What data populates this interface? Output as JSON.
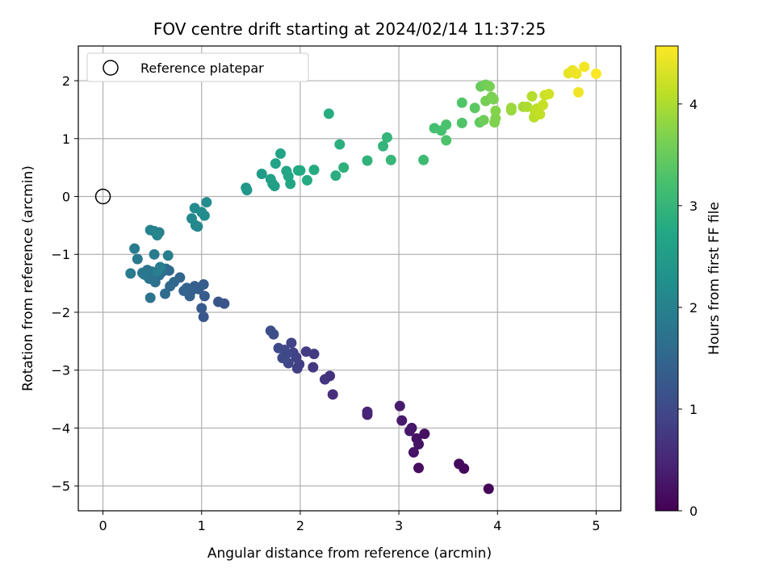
{
  "chart_data": {
    "type": "scatter",
    "title": "FOV centre drift starting at 2024/02/14 11:37:25",
    "xlabel": "Angular distance from reference (arcmin)",
    "ylabel": "Rotation from reference (arcmin)",
    "colorbar_label": "Hours from first FF file",
    "xlim": [
      -0.25,
      5.25
    ],
    "ylim": [
      -5.43,
      2.6
    ],
    "clim": [
      0,
      4.57
    ],
    "x_ticks": [
      "0",
      "1",
      "2",
      "3",
      "4",
      "5"
    ],
    "y_ticks": [
      "2",
      "1",
      "0",
      "−1",
      "−2",
      "−3",
      "−4",
      "−5"
    ],
    "colorbar_ticks": [
      "0",
      "1",
      "2",
      "3",
      "4"
    ],
    "grid": true,
    "legend_placement": "top-left",
    "colormap": "viridis",
    "reference_point": {
      "label": "Reference platepar",
      "x": 0,
      "y": 0
    },
    "points": [
      [
        3.91,
        -5.05,
        0.05
      ],
      [
        3.66,
        -4.7,
        0.1
      ],
      [
        3.61,
        -4.62,
        0.12
      ],
      [
        3.2,
        -4.69,
        0.15
      ],
      [
        3.26,
        -4.1,
        0.2
      ],
      [
        3.18,
        -4.18,
        0.22
      ],
      [
        3.2,
        -4.28,
        0.24
      ],
      [
        3.15,
        -4.42,
        0.26
      ],
      [
        3.13,
        -4.0,
        0.28
      ],
      [
        3.11,
        -4.05,
        0.3
      ],
      [
        3.03,
        -3.87,
        0.32
      ],
      [
        3.01,
        -3.62,
        0.35
      ],
      [
        2.68,
        -3.77,
        0.45
      ],
      [
        2.68,
        -3.72,
        0.47
      ],
      [
        2.33,
        -3.42,
        0.6
      ],
      [
        2.3,
        -3.1,
        0.65
      ],
      [
        2.25,
        -3.16,
        0.7
      ],
      [
        2.13,
        -2.95,
        0.75
      ],
      [
        2.14,
        -2.72,
        0.78
      ],
      [
        2.06,
        -2.68,
        0.8
      ],
      [
        1.99,
        -2.9,
        0.83
      ],
      [
        1.97,
        -2.97,
        0.85
      ],
      [
        1.96,
        -2.78,
        0.88
      ],
      [
        1.93,
        -2.7,
        0.9
      ],
      [
        1.91,
        -2.53,
        0.93
      ],
      [
        1.88,
        -2.88,
        0.95
      ],
      [
        1.86,
        -2.72,
        0.98
      ],
      [
        1.84,
        -2.65,
        1.0
      ],
      [
        1.82,
        -2.79,
        1.02
      ],
      [
        1.78,
        -2.62,
        1.05
      ],
      [
        1.73,
        -2.38,
        1.08
      ],
      [
        1.7,
        -2.32,
        1.1
      ],
      [
        1.23,
        -1.85,
        1.2
      ],
      [
        1.17,
        -1.82,
        1.22
      ],
      [
        1.02,
        -2.08,
        1.25
      ],
      [
        1.0,
        -1.93,
        1.28
      ],
      [
        1.03,
        -1.72,
        1.3
      ],
      [
        1.02,
        -1.52,
        1.33
      ],
      [
        0.97,
        -1.6,
        1.35
      ],
      [
        0.93,
        -1.55,
        1.38
      ],
      [
        0.9,
        -1.62,
        1.4
      ],
      [
        0.88,
        -1.72,
        1.42
      ],
      [
        0.85,
        -1.58,
        1.45
      ],
      [
        0.82,
        -1.63,
        1.47
      ],
      [
        0.78,
        -1.4,
        1.5
      ],
      [
        0.72,
        -1.48,
        1.52
      ],
      [
        0.68,
        -1.55,
        1.55
      ],
      [
        0.67,
        -1.28,
        1.57
      ],
      [
        0.64,
        -1.25,
        1.6
      ],
      [
        0.63,
        -1.68,
        1.62
      ],
      [
        0.6,
        -1.3,
        1.65
      ],
      [
        0.57,
        -1.36,
        1.67
      ],
      [
        0.53,
        -1.48,
        1.7
      ],
      [
        0.5,
        -1.3,
        1.72
      ],
      [
        0.48,
        -1.75,
        1.74
      ],
      [
        0.47,
        -1.42,
        1.76
      ],
      [
        0.45,
        -1.27,
        1.78
      ],
      [
        0.42,
        -1.35,
        1.8
      ],
      [
        0.4,
        -1.32,
        1.82
      ],
      [
        0.35,
        -1.08,
        1.84
      ],
      [
        0.32,
        -0.9,
        1.86
      ],
      [
        0.28,
        -1.33,
        1.88
      ],
      [
        0.52,
        -1.0,
        1.9
      ],
      [
        0.55,
        -1.3,
        1.92
      ],
      [
        0.58,
        -1.22,
        1.94
      ],
      [
        0.66,
        -1.02,
        1.96
      ],
      [
        0.57,
        -0.62,
        1.98
      ],
      [
        0.52,
        -0.6,
        2.0
      ],
      [
        0.48,
        -0.58,
        2.02
      ],
      [
        0.55,
        -0.67,
        2.04
      ],
      [
        0.96,
        -0.52,
        2.1
      ],
      [
        0.94,
        -0.5,
        2.12
      ],
      [
        0.9,
        -0.38,
        2.14
      ],
      [
        0.93,
        -0.2,
        2.16
      ],
      [
        1.0,
        -0.27,
        2.18
      ],
      [
        1.03,
        -0.33,
        2.2
      ],
      [
        1.05,
        -0.1,
        2.22
      ],
      [
        1.45,
        0.15,
        2.4
      ],
      [
        1.46,
        0.11,
        2.42
      ],
      [
        1.61,
        0.39,
        2.5
      ],
      [
        1.72,
        0.22,
        2.55
      ],
      [
        1.74,
        0.18,
        2.57
      ],
      [
        1.7,
        0.3,
        2.6
      ],
      [
        1.75,
        0.57,
        2.62
      ],
      [
        1.8,
        0.74,
        2.65
      ],
      [
        1.86,
        0.44,
        2.68
      ],
      [
        1.88,
        0.35,
        2.7
      ],
      [
        1.9,
        0.22,
        2.72
      ],
      [
        1.98,
        0.45,
        2.74
      ],
      [
        2.0,
        0.45,
        2.76
      ],
      [
        2.07,
        0.28,
        2.78
      ],
      [
        2.14,
        0.46,
        2.8
      ],
      [
        2.29,
        1.43,
        2.82
      ],
      [
        2.36,
        0.36,
        2.85
      ],
      [
        2.4,
        0.9,
        2.88
      ],
      [
        2.44,
        0.5,
        2.9
      ],
      [
        2.68,
        0.62,
        2.95
      ],
      [
        2.84,
        0.87,
        2.98
      ],
      [
        2.88,
        1.02,
        3.0
      ],
      [
        2.92,
        0.63,
        3.02
      ],
      [
        3.25,
        0.63,
        3.1
      ],
      [
        3.36,
        1.18,
        3.2
      ],
      [
        3.43,
        1.14,
        3.22
      ],
      [
        3.48,
        1.24,
        3.25
      ],
      [
        3.48,
        0.97,
        3.27
      ],
      [
        3.64,
        1.27,
        3.3
      ],
      [
        3.64,
        1.62,
        3.32
      ],
      [
        3.77,
        1.53,
        3.4
      ],
      [
        3.82,
        1.28,
        3.45
      ],
      [
        3.83,
        1.9,
        3.5
      ],
      [
        3.86,
        1.32,
        3.55
      ],
      [
        3.88,
        1.93,
        3.57
      ],
      [
        3.88,
        1.65,
        3.6
      ],
      [
        3.92,
        1.9,
        3.62
      ],
      [
        3.94,
        1.72,
        3.64
      ],
      [
        3.96,
        1.68,
        3.66
      ],
      [
        3.97,
        1.28,
        3.68
      ],
      [
        3.98,
        1.35,
        3.7
      ],
      [
        3.98,
        1.48,
        3.72
      ],
      [
        4.14,
        1.49,
        3.85
      ],
      [
        4.14,
        1.53,
        3.88
      ],
      [
        4.26,
        1.55,
        3.95
      ],
      [
        4.3,
        1.55,
        4.0
      ],
      [
        4.35,
        1.73,
        4.05
      ],
      [
        4.37,
        1.37,
        4.08
      ],
      [
        4.38,
        1.48,
        4.1
      ],
      [
        4.4,
        1.52,
        4.12
      ],
      [
        4.43,
        1.42,
        4.15
      ],
      [
        4.46,
        1.58,
        4.18
      ],
      [
        4.48,
        1.75,
        4.2
      ],
      [
        4.52,
        1.77,
        4.25
      ],
      [
        4.72,
        2.13,
        4.4
      ],
      [
        4.76,
        2.18,
        4.42
      ],
      [
        4.78,
        2.15,
        4.44
      ],
      [
        4.8,
        2.12,
        4.46
      ],
      [
        4.82,
        1.8,
        4.48
      ],
      [
        4.88,
        2.24,
        4.5
      ],
      [
        5.0,
        2.12,
        4.55
      ]
    ]
  }
}
